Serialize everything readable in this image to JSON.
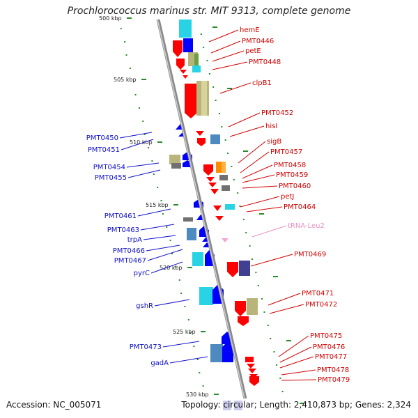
{
  "title": "Prochlorococcus marinus str. MIT 9313, complete genome",
  "accession": "Accession: NC_005071",
  "topology": "Topology: circular; Length: 2,410,873 bp; Genes: 2,324",
  "colors": {
    "forward_label": "#d00000",
    "reverse_label": "#1010c8",
    "rna_label": "#e890c0",
    "backbone": "#9a9a9a",
    "tick": "#2a8a2a"
  },
  "scale_labels": [
    {
      "text": "500 kbp",
      "kbp": 500
    },
    {
      "text": "505 kbp",
      "kbp": 505
    },
    {
      "text": "510 kbp",
      "kbp": 510
    },
    {
      "text": "515 kbp",
      "kbp": 515
    },
    {
      "text": "520 kbp",
      "kbp": 520
    },
    {
      "text": "525 kbp",
      "kbp": 525
    },
    {
      "text": "530 kbp",
      "kbp": 530
    }
  ],
  "right_labels": [
    {
      "text": "hemE",
      "type": "forward"
    },
    {
      "text": "PMT0446",
      "type": "forward"
    },
    {
      "text": "petE",
      "type": "forward"
    },
    {
      "text": "PMT0448",
      "type": "forward"
    },
    {
      "text": "clpB1",
      "type": "forward"
    },
    {
      "text": "PMT0452",
      "type": "forward"
    },
    {
      "text": "hisI",
      "type": "forward"
    },
    {
      "text": "sigB",
      "type": "forward"
    },
    {
      "text": "PMT0457",
      "type": "forward"
    },
    {
      "text": "PMT0458",
      "type": "forward"
    },
    {
      "text": "PMT0459",
      "type": "forward"
    },
    {
      "text": "PMT0460",
      "type": "forward"
    },
    {
      "text": "petJ",
      "type": "forward"
    },
    {
      "text": "PMT0464",
      "type": "forward"
    },
    {
      "text": "tRNA-Leu2",
      "type": "rna"
    },
    {
      "text": "PMT0469",
      "type": "forward"
    },
    {
      "text": "PMT0471",
      "type": "forward"
    },
    {
      "text": "PMT0472",
      "type": "forward"
    },
    {
      "text": "PMT0475",
      "type": "forward"
    },
    {
      "text": "PMT0476",
      "type": "forward"
    },
    {
      "text": "PMT0477",
      "type": "forward"
    },
    {
      "text": "PMT0478",
      "type": "forward"
    },
    {
      "text": "PMT0479",
      "type": "forward"
    }
  ],
  "left_labels": [
    {
      "text": "PMT0450",
      "type": "reverse"
    },
    {
      "text": "PMT0451",
      "type": "reverse"
    },
    {
      "text": "PMT0454",
      "type": "reverse"
    },
    {
      "text": "PMT0455",
      "type": "reverse"
    },
    {
      "text": "PMT0461",
      "type": "reverse"
    },
    {
      "text": "PMT0463",
      "type": "reverse"
    },
    {
      "text": "trpA",
      "type": "reverse"
    },
    {
      "text": "PMT0466",
      "type": "reverse"
    },
    {
      "text": "PMT0467",
      "type": "reverse"
    },
    {
      "text": "pyrC",
      "type": "reverse"
    },
    {
      "text": "gshR",
      "type": "reverse"
    },
    {
      "text": "PMT0473",
      "type": "reverse"
    },
    {
      "text": "gadA",
      "type": "reverse"
    }
  ]
}
